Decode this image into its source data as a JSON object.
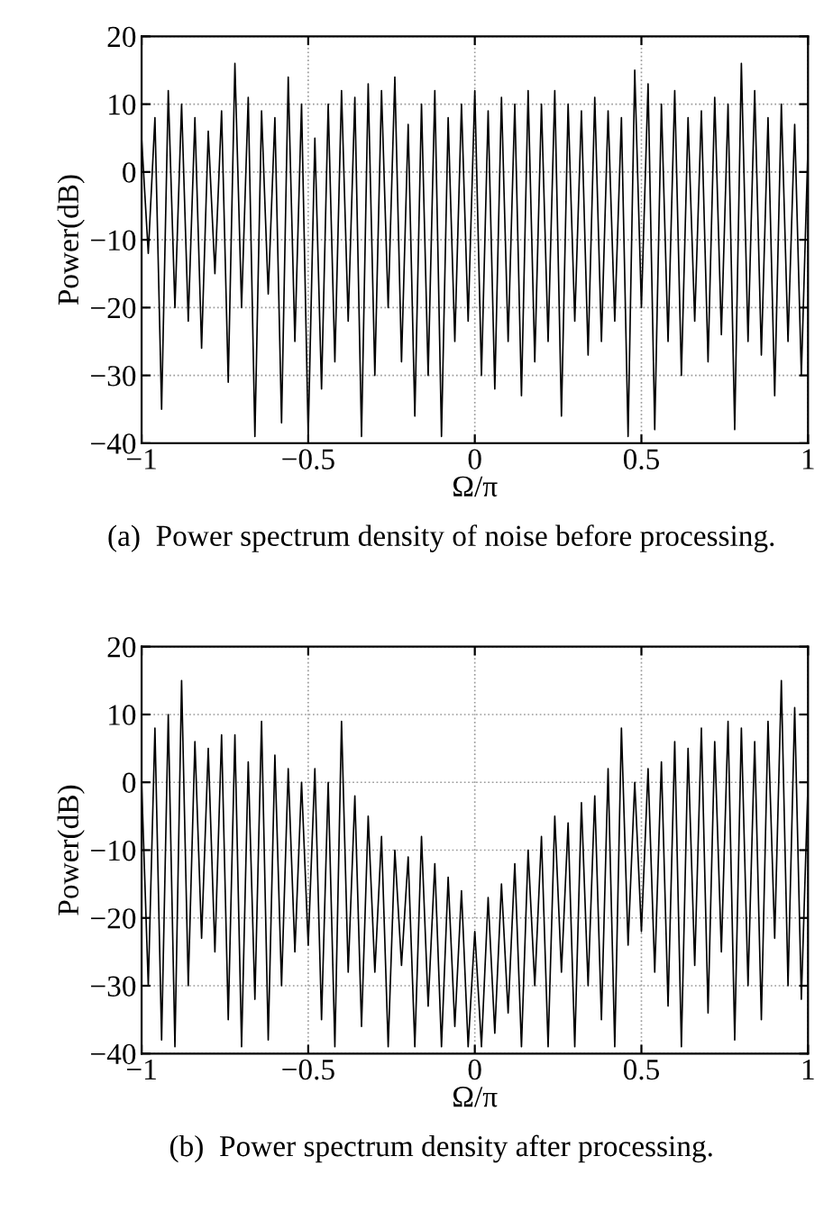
{
  "chart_data": [
    {
      "type": "line",
      "xlabel": "Ω/π",
      "ylabel": "Power(dB)",
      "annotations": [
        "(a)  Power spectrum density of noise before processing."
      ],
      "x": [
        -1,
        -0.98,
        -0.96,
        -0.94,
        -0.92,
        -0.9,
        -0.88,
        -0.86,
        -0.84,
        -0.82,
        -0.8,
        -0.78,
        -0.76,
        -0.74,
        -0.72,
        -0.7,
        -0.68,
        -0.66,
        -0.64,
        -0.62,
        -0.6,
        -0.58,
        -0.56,
        -0.54,
        -0.52,
        -0.5,
        -0.48,
        -0.46,
        -0.44,
        -0.42,
        -0.4,
        -0.38,
        -0.36,
        -0.34,
        -0.32,
        -0.3,
        -0.28,
        -0.26,
        -0.24,
        -0.22,
        -0.2,
        -0.18,
        -0.16,
        -0.14,
        -0.12,
        -0.1,
        -0.08,
        -0.06,
        -0.04,
        -0.02,
        0,
        0.02,
        0.04,
        0.06,
        0.08,
        0.1,
        0.12,
        0.14,
        0.16,
        0.18,
        0.2,
        0.22,
        0.24,
        0.26,
        0.28,
        0.3,
        0.32,
        0.34,
        0.36,
        0.38,
        0.4,
        0.42,
        0.44,
        0.46,
        0.48,
        0.5,
        0.52,
        0.54,
        0.56,
        0.58,
        0.6,
        0.62,
        0.64,
        0.66,
        0.68,
        0.7,
        0.72,
        0.74,
        0.76,
        0.78,
        0.8,
        0.82,
        0.84,
        0.86,
        0.88,
        0.9,
        0.92,
        0.94,
        0.96,
        0.98,
        1
      ],
      "series": [
        {
          "color": "#000000",
          "values": [
            5,
            -12,
            8,
            -35,
            12,
            -20,
            10,
            -22,
            8,
            -26,
            6,
            -15,
            9,
            -31,
            16,
            -20,
            11,
            -39,
            9,
            -18,
            8,
            -37,
            14,
            -25,
            10,
            -39,
            5,
            -32,
            10,
            -28,
            12,
            -22,
            11,
            -39,
            13,
            -30,
            12,
            -20,
            14,
            -28,
            7,
            -36,
            10,
            -30,
            12,
            -39,
            8,
            -25,
            10,
            -22,
            12,
            -30,
            9,
            -32,
            11,
            -25,
            10,
            -33,
            12,
            -28,
            10,
            -25,
            12,
            -36,
            10,
            -22,
            9,
            -27,
            11,
            -25,
            9,
            -22,
            8,
            -39,
            15,
            -20,
            13,
            -38,
            10,
            -25,
            12,
            -30,
            8,
            -22,
            9,
            -28,
            11,
            -24,
            10,
            -38,
            16,
            -25,
            12,
            -27,
            8,
            -33,
            10,
            -25,
            7,
            -30,
            4
          ]
        }
      ],
      "xlim": [
        -1,
        1
      ],
      "ylim": [
        -40,
        20
      ],
      "xticks": [
        -1,
        -0.5,
        0,
        0.5,
        1
      ],
      "yticks": [
        -40,
        -30,
        -20,
        -10,
        0,
        10,
        20
      ],
      "grid": true,
      "line_style": "solid"
    },
    {
      "type": "line",
      "xlabel": "Ω/π",
      "ylabel": "Power(dB)",
      "annotations": [
        "(b)  Power spectrum density after processing."
      ],
      "x": [
        -1,
        -0.98,
        -0.96,
        -0.94,
        -0.92,
        -0.9,
        -0.88,
        -0.86,
        -0.84,
        -0.82,
        -0.8,
        -0.78,
        -0.76,
        -0.74,
        -0.72,
        -0.7,
        -0.68,
        -0.66,
        -0.64,
        -0.62,
        -0.6,
        -0.58,
        -0.56,
        -0.54,
        -0.52,
        -0.5,
        -0.48,
        -0.46,
        -0.44,
        -0.42,
        -0.4,
        -0.38,
        -0.36,
        -0.34,
        -0.32,
        -0.3,
        -0.28,
        -0.26,
        -0.24,
        -0.22,
        -0.2,
        -0.18,
        -0.16,
        -0.14,
        -0.12,
        -0.1,
        -0.08,
        -0.06,
        -0.04,
        -0.02,
        0,
        0.02,
        0.04,
        0.06,
        0.08,
        0.1,
        0.12,
        0.14,
        0.16,
        0.18,
        0.2,
        0.22,
        0.24,
        0.26,
        0.28,
        0.3,
        0.32,
        0.34,
        0.36,
        0.38,
        0.4,
        0.42,
        0.44,
        0.46,
        0.48,
        0.5,
        0.52,
        0.54,
        0.56,
        0.58,
        0.6,
        0.62,
        0.64,
        0.66,
        0.68,
        0.7,
        0.72,
        0.74,
        0.76,
        0.78,
        0.8,
        0.82,
        0.84,
        0.86,
        0.88,
        0.9,
        0.92,
        0.94,
        0.96,
        0.98,
        1
      ],
      "series": [
        {
          "color": "#000000",
          "values": [
            0,
            -30,
            8,
            -38,
            10,
            -39,
            15,
            -30,
            6,
            -23,
            5,
            -25,
            7,
            -35,
            7,
            -39,
            3,
            -32,
            9,
            -38,
            4,
            -30,
            2,
            -25,
            0,
            -24,
            2,
            -35,
            0,
            -39,
            9,
            -28,
            -2,
            -36,
            -5,
            -28,
            -8,
            -39,
            -10,
            -27,
            -11,
            -39,
            -8,
            -33,
            -12,
            -39,
            -14,
            -36,
            -16,
            -39,
            -22,
            -39,
            -17,
            -37,
            -15,
            -34,
            -12,
            -39,
            -10,
            -30,
            -8,
            -39,
            -5,
            -28,
            -6,
            -39,
            -3,
            -30,
            -2,
            -35,
            2,
            -39,
            8,
            -24,
            0,
            -22,
            2,
            -28,
            3,
            -33,
            6,
            -39,
            5,
            -27,
            8,
            -34,
            6,
            -25,
            9,
            -38,
            8,
            -30,
            6,
            -35,
            9,
            -23,
            15,
            -30,
            11,
            -32,
            0
          ]
        }
      ],
      "xlim": [
        -1,
        1
      ],
      "ylim": [
        -40,
        20
      ],
      "xticks": [
        -1,
        -0.5,
        0,
        0.5,
        1
      ],
      "yticks": [
        -40,
        -30,
        -20,
        -10,
        0,
        10,
        20
      ],
      "grid": true,
      "line_style": "solid"
    }
  ]
}
